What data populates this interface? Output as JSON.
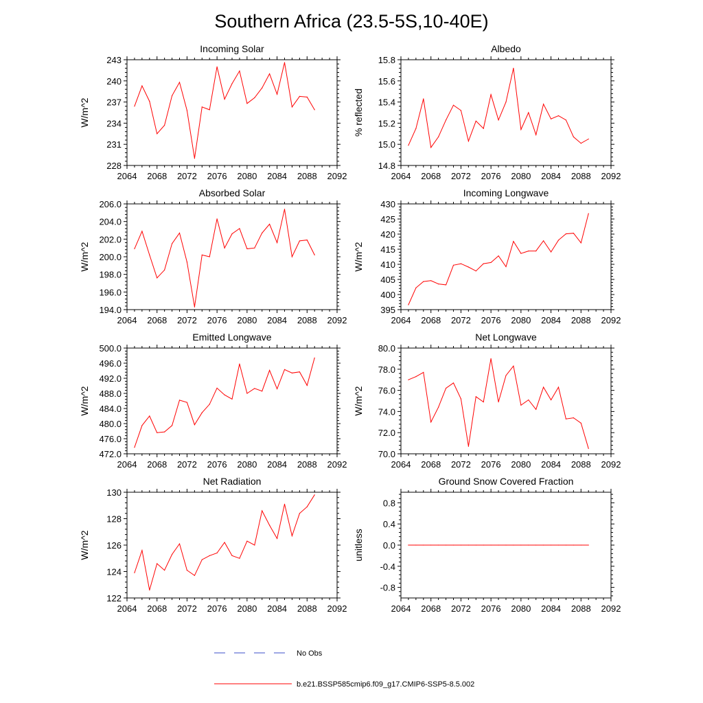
{
  "title": "Southern Africa (23.5-5S,10-40E)",
  "line_color": "#ff0000",
  "obs_color": "#3b4ec8",
  "chart_data": [
    {
      "type": "line",
      "title": "Incoming Solar",
      "ylabel": "W/m^2",
      "xlim": [
        2064,
        2092
      ],
      "ylim": [
        228,
        243
      ],
      "xticks": [
        "2064",
        "2068",
        "2072",
        "2076",
        "2080",
        "2084",
        "2088",
        "2092"
      ],
      "yticks": [
        "228",
        "231",
        "234",
        "237",
        "240",
        "243"
      ],
      "series": [
        {
          "name": "b.e21.BSSP585cmip6.f09_g17.CMIP6-SSP5-8.5.002",
          "x": [
            2065,
            2066,
            2067,
            2068,
            2069,
            2070,
            2071,
            2072,
            2073,
            2074,
            2075,
            2076,
            2077,
            2078,
            2079,
            2080,
            2081,
            2082,
            2083,
            2084,
            2085,
            2086,
            2087,
            2088,
            2089
          ],
          "y": [
            236.4,
            239.3,
            237.1,
            232.5,
            233.7,
            237.9,
            239.8,
            235.8,
            229.0,
            236.3,
            235.9,
            242.0,
            237.4,
            239.6,
            241.4,
            236.8,
            237.6,
            239.0,
            241.0,
            238.1,
            242.6,
            236.3,
            237.8,
            237.7,
            235.9
          ]
        }
      ]
    },
    {
      "type": "line",
      "title": "Albedo",
      "ylabel": "% reflected",
      "xlim": [
        2064,
        2092
      ],
      "ylim": [
        14.8,
        15.8
      ],
      "xticks": [
        "2064",
        "2068",
        "2072",
        "2076",
        "2080",
        "2084",
        "2088",
        "2092"
      ],
      "yticks": [
        "14.8",
        "15.0",
        "15.2",
        "15.4",
        "15.6",
        "15.8"
      ],
      "series": [
        {
          "name": "b.e21.BSSP585cmip6.f09_g17.CMIP6-SSP5-8.5.002",
          "x": [
            2065,
            2066,
            2067,
            2068,
            2069,
            2070,
            2071,
            2072,
            2073,
            2074,
            2075,
            2076,
            2077,
            2078,
            2079,
            2080,
            2081,
            2082,
            2083,
            2084,
            2085,
            2086,
            2087,
            2088,
            2089
          ],
          "y": [
            14.99,
            15.15,
            15.43,
            14.97,
            15.07,
            15.23,
            15.37,
            15.32,
            15.03,
            15.22,
            15.15,
            15.47,
            15.23,
            15.4,
            15.72,
            15.14,
            15.3,
            15.09,
            15.38,
            15.24,
            15.27,
            15.23,
            15.07,
            15.01,
            15.05
          ]
        }
      ]
    },
    {
      "type": "line",
      "title": "Absorbed Solar",
      "ylabel": "W/m^2",
      "xlim": [
        2064,
        2092
      ],
      "ylim": [
        194.0,
        206.0
      ],
      "xticks": [
        "2064",
        "2068",
        "2072",
        "2076",
        "2080",
        "2084",
        "2088",
        "2092"
      ],
      "yticks": [
        "194.0",
        "196.0",
        "198.0",
        "200.0",
        "202.0",
        "204.0",
        "206.0"
      ],
      "series": [
        {
          "name": "b.e21.BSSP585cmip6.f09_g17.CMIP6-SSP5-8.5.002",
          "x": [
            2065,
            2066,
            2067,
            2068,
            2069,
            2070,
            2071,
            2072,
            2073,
            2074,
            2075,
            2076,
            2077,
            2078,
            2079,
            2080,
            2081,
            2082,
            2083,
            2084,
            2085,
            2086,
            2087,
            2088,
            2089
          ],
          "y": [
            200.9,
            202.9,
            200.2,
            197.6,
            198.5,
            201.5,
            202.7,
            199.4,
            194.3,
            200.2,
            200.0,
            204.3,
            201.0,
            202.6,
            203.2,
            200.9,
            201.0,
            202.7,
            203.7,
            201.6,
            205.4,
            200.0,
            201.8,
            201.9,
            200.2
          ]
        }
      ]
    },
    {
      "type": "line",
      "title": "Incoming Longwave",
      "ylabel": "W/m^2",
      "xlim": [
        2064,
        2092
      ],
      "ylim": [
        395,
        430
      ],
      "xticks": [
        "2064",
        "2068",
        "2072",
        "2076",
        "2080",
        "2084",
        "2088",
        "2092"
      ],
      "yticks": [
        "395",
        "400",
        "405",
        "410",
        "415",
        "420",
        "425",
        "430"
      ],
      "series": [
        {
          "name": "b.e21.BSSP585cmip6.f09_g17.CMIP6-SSP5-8.5.002",
          "x": [
            2065,
            2066,
            2067,
            2068,
            2069,
            2070,
            2071,
            2072,
            2073,
            2074,
            2075,
            2076,
            2077,
            2078,
            2079,
            2080,
            2081,
            2082,
            2083,
            2084,
            2085,
            2086,
            2087,
            2088,
            2089
          ],
          "y": [
            396.6,
            402.2,
            404.3,
            404.6,
            403.5,
            403.2,
            409.7,
            410.2,
            409.1,
            407.8,
            410.2,
            410.6,
            412.8,
            409.2,
            417.6,
            413.6,
            414.4,
            414.4,
            417.8,
            414.1,
            418.0,
            420.1,
            420.3,
            417.1,
            426.8
          ]
        }
      ]
    },
    {
      "type": "line",
      "title": "Emitted Longwave",
      "ylabel": "W/m^2",
      "xlim": [
        2064,
        2092
      ],
      "ylim": [
        472.0,
        500.0
      ],
      "xticks": [
        "2064",
        "2068",
        "2072",
        "2076",
        "2080",
        "2084",
        "2088",
        "2092"
      ],
      "yticks": [
        "472.0",
        "476.0",
        "480.0",
        "484.0",
        "488.0",
        "492.0",
        "496.0",
        "500.0"
      ],
      "series": [
        {
          "name": "b.e21.BSSP585cmip6.f09_g17.CMIP6-SSP5-8.5.002",
          "x": [
            2065,
            2066,
            2067,
            2068,
            2069,
            2070,
            2071,
            2072,
            2073,
            2074,
            2075,
            2076,
            2077,
            2078,
            2079,
            2080,
            2081,
            2082,
            2083,
            2084,
            2085,
            2086,
            2087,
            2088,
            2089
          ],
          "y": [
            473.7,
            479.5,
            482.0,
            477.6,
            477.8,
            479.5,
            486.2,
            485.6,
            479.7,
            482.9,
            485.1,
            489.4,
            487.6,
            486.5,
            495.8,
            488.0,
            489.3,
            488.6,
            494.1,
            489.2,
            494.3,
            493.4,
            493.7,
            490.1,
            497.4
          ]
        }
      ]
    },
    {
      "type": "line",
      "title": "Net Longwave",
      "ylabel": "W/m^2",
      "xlim": [
        2064,
        2092
      ],
      "ylim": [
        70.0,
        80.0
      ],
      "xticks": [
        "2064",
        "2068",
        "2072",
        "2076",
        "2080",
        "2084",
        "2088",
        "2092"
      ],
      "yticks": [
        "70.0",
        "72.0",
        "74.0",
        "76.0",
        "78.0",
        "80.0"
      ],
      "series": [
        {
          "name": "b.e21.BSSP585cmip6.f09_g17.CMIP6-SSP5-8.5.002",
          "x": [
            2065,
            2066,
            2067,
            2068,
            2069,
            2070,
            2071,
            2072,
            2073,
            2074,
            2075,
            2076,
            2077,
            2078,
            2079,
            2080,
            2081,
            2082,
            2083,
            2084,
            2085,
            2086,
            2087,
            2088,
            2089
          ],
          "y": [
            77.0,
            77.3,
            77.7,
            73.0,
            74.4,
            76.2,
            76.7,
            75.2,
            70.7,
            75.4,
            74.9,
            79.0,
            74.9,
            77.4,
            78.3,
            74.6,
            75.1,
            74.2,
            76.3,
            75.1,
            76.3,
            73.3,
            73.4,
            72.9,
            70.5
          ]
        }
      ]
    },
    {
      "type": "line",
      "title": "Net Radiation",
      "ylabel": "W/m^2",
      "xlim": [
        2064,
        2092
      ],
      "ylim": [
        122,
        130
      ],
      "xticks": [
        "2064",
        "2068",
        "2072",
        "2076",
        "2080",
        "2084",
        "2088",
        "2092"
      ],
      "yticks": [
        "122",
        "124",
        "126",
        "128",
        "130"
      ],
      "series": [
        {
          "name": "b.e21.BSSP585cmip6.f09_g17.CMIP6-SSP5-8.5.002",
          "x": [
            2065,
            2066,
            2067,
            2068,
            2069,
            2070,
            2071,
            2072,
            2073,
            2074,
            2075,
            2076,
            2077,
            2078,
            2079,
            2080,
            2081,
            2082,
            2083,
            2084,
            2085,
            2086,
            2087,
            2088,
            2089
          ],
          "y": [
            123.9,
            125.6,
            122.6,
            124.6,
            124.1,
            125.3,
            126.1,
            124.1,
            123.7,
            124.9,
            125.2,
            125.4,
            126.2,
            125.2,
            125.0,
            126.3,
            126.0,
            128.6,
            127.5,
            126.5,
            129.1,
            126.7,
            128.4,
            128.9,
            129.8
          ]
        }
      ]
    },
    {
      "type": "line",
      "title": "Ground Snow Covered Fraction",
      "ylabel": "unitless",
      "xlim": [
        2064,
        2092
      ],
      "ylim": [
        -1.0,
        1.0
      ],
      "xticks": [
        "2064",
        "2068",
        "2072",
        "2076",
        "2080",
        "2084",
        "2088",
        "2092"
      ],
      "yticks": [
        "-0.8",
        "-0.4",
        "0.0",
        "0.4",
        "0.8"
      ],
      "ytick_values": [
        -0.8,
        -0.4,
        0.0,
        0.4,
        0.8
      ],
      "series": [
        {
          "name": "b.e21.BSSP585cmip6.f09_g17.CMIP6-SSP5-8.5.002",
          "x": [
            2065,
            2066,
            2067,
            2068,
            2069,
            2070,
            2071,
            2072,
            2073,
            2074,
            2075,
            2076,
            2077,
            2078,
            2079,
            2080,
            2081,
            2082,
            2083,
            2084,
            2085,
            2086,
            2087,
            2088,
            2089
          ],
          "y": [
            0,
            0,
            0,
            0,
            0,
            0,
            0,
            0,
            0,
            0,
            0,
            0,
            0,
            0,
            0,
            0,
            0,
            0,
            0,
            0,
            0,
            0,
            0,
            0,
            0
          ]
        }
      ]
    }
  ],
  "legend": {
    "obs_label": "No Obs",
    "model_label": "b.e21.BSSP585cmip6.f09_g17.CMIP6-SSP5-8.5.002"
  }
}
